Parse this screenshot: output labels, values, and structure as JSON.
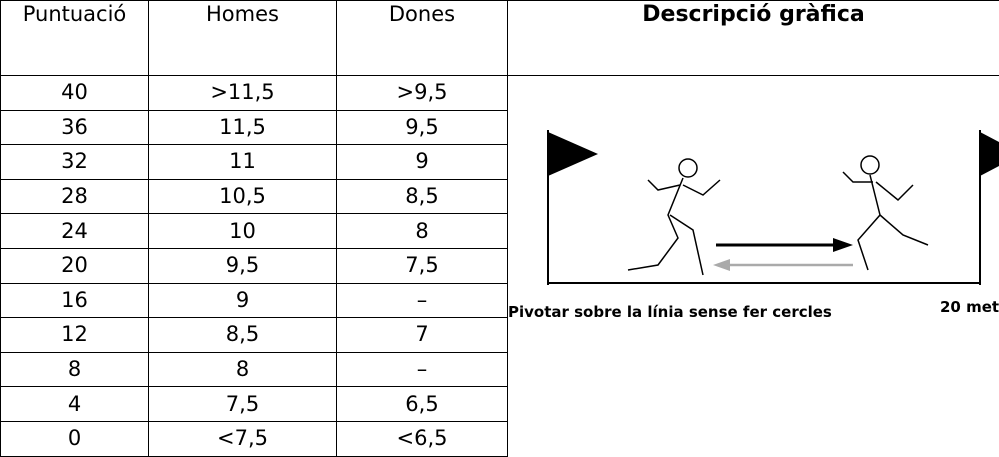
{
  "table": {
    "header": [
      "Puntuació",
      "Homes",
      "Dones",
      "Descripció gràfica"
    ],
    "rows": [
      [
        "40",
        ">11,5",
        ">9,5"
      ],
      [
        "36",
        "11,5",
        "9,5"
      ],
      [
        "32",
        "11",
        "9"
      ],
      [
        "28",
        "10,5",
        "8,5"
      ],
      [
        "24",
        "10",
        "8"
      ],
      [
        "20",
        "9,5",
        "7,5"
      ],
      [
        "16",
        "9",
        "–"
      ],
      [
        "12",
        "8,5",
        "7"
      ],
      [
        "8",
        "8",
        "–"
      ],
      [
        "4",
        "7,5",
        "6,5"
      ],
      [
        "0",
        "<7,5",
        "<6,5"
      ]
    ]
  },
  "figure": {
    "caption": "Pivotar sobre la línia sense fer cercles",
    "distance": "20 met"
  }
}
